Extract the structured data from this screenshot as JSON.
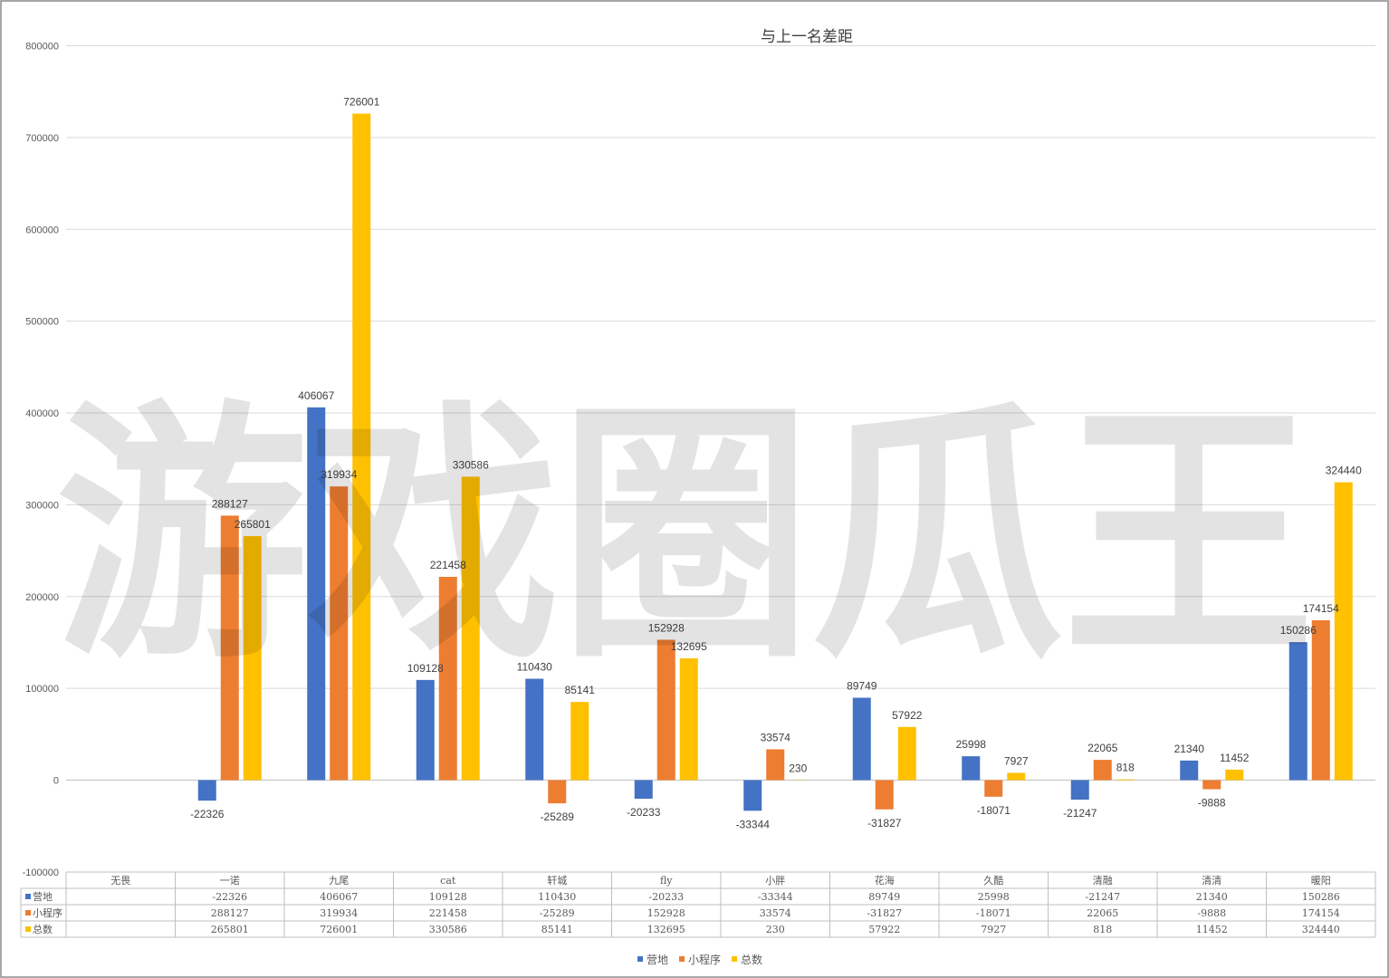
{
  "watermark": "游戏圈瓜王",
  "colors": {
    "营地": "#4472c4",
    "小程序": "#ed7d31",
    "总数": "#ffc000"
  },
  "chart_data": {
    "type": "bar",
    "title": "与上一名差距",
    "categories": [
      "无畏",
      "一诺",
      "九尾",
      "cat",
      "轩城",
      "fly",
      "小胖",
      "花海",
      "久酷",
      "清融",
      "清清",
      "暖阳"
    ],
    "series": [
      {
        "name": "营地",
        "values": [
          null,
          -22326,
          406067,
          109128,
          110430,
          -20233,
          -33344,
          89749,
          25998,
          -21247,
          21340,
          150286
        ]
      },
      {
        "name": "小程序",
        "values": [
          null,
          288127,
          319934,
          221458,
          -25289,
          152928,
          33574,
          -31827,
          -18071,
          22065,
          -9888,
          174154
        ]
      },
      {
        "name": "总数",
        "values": [
          null,
          265801,
          726001,
          330586,
          85141,
          132695,
          230,
          57922,
          7927,
          818,
          11452,
          324440
        ]
      }
    ],
    "ylim": [
      -100000,
      800000
    ],
    "yticks": [
      -100000,
      0,
      100000,
      200000,
      300000,
      400000,
      500000,
      600000,
      700000,
      800000
    ],
    "grid": true,
    "legend": "bottom",
    "data_table": true
  }
}
